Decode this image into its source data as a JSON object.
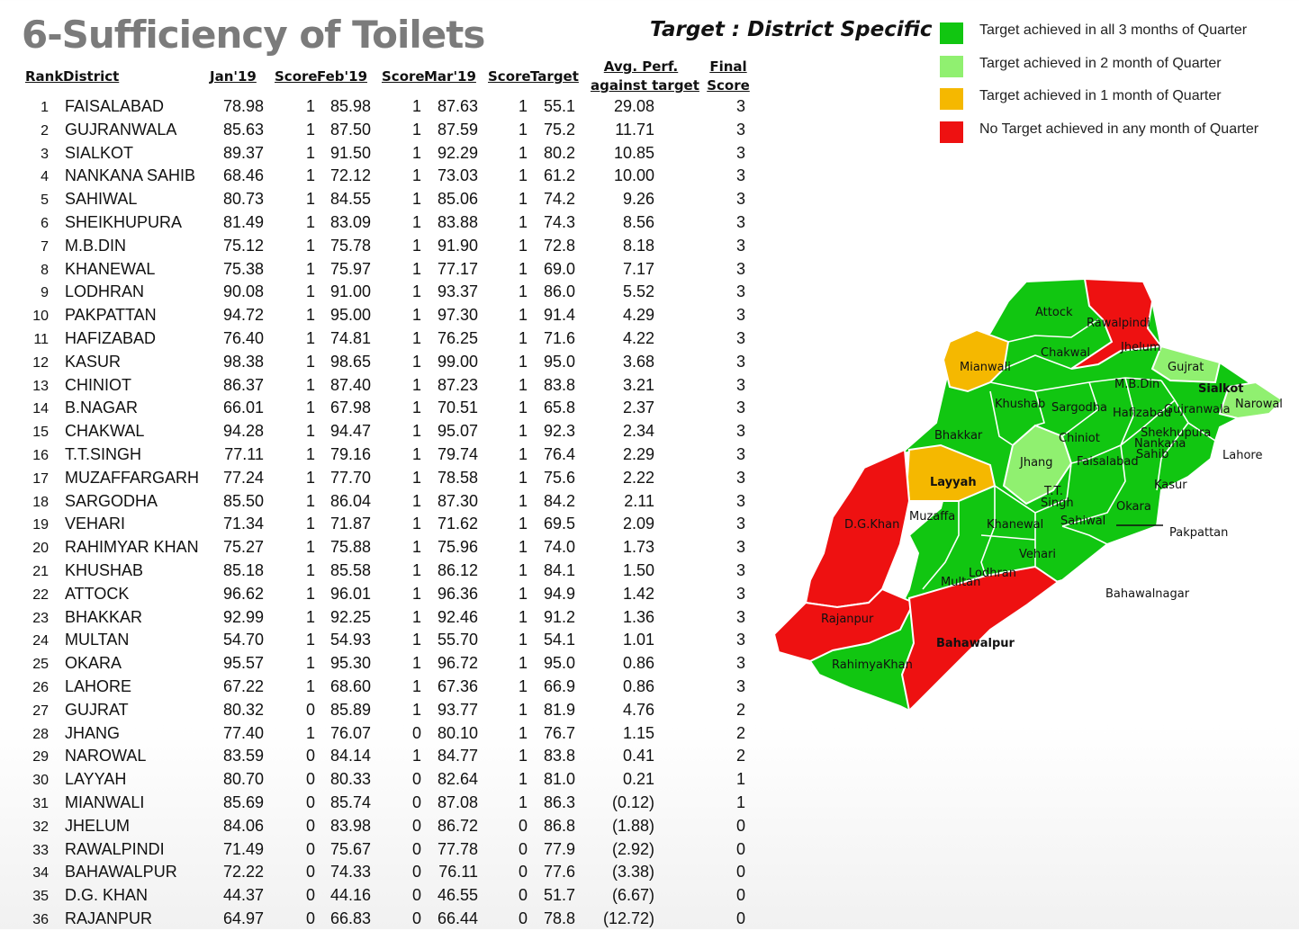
{
  "title": "6-Sufficiency of Toilets",
  "target_note": "Target : District Specific",
  "legend": [
    {
      "label": "Target achieved in all 3 months of Quarter",
      "color": "#11c611"
    },
    {
      "label": "Target achieved in 2 month of Quarter",
      "color": "#90f070"
    },
    {
      "label": "Target achieved in 1 month of Quarter",
      "color": "#f5b800"
    },
    {
      "label": "No Target achieved in any month of Quarter",
      "color": "#ee1111"
    }
  ],
  "headers": {
    "rank": "Rank",
    "district": "District",
    "jan": "Jan'19",
    "score1": "Score",
    "feb": "Feb'19",
    "score2": "Score",
    "mar": "Mar'19",
    "score3": "Score",
    "target": "Target",
    "avg_line1": "Avg. Perf.",
    "avg_line2": "against target",
    "final_line1": "Final",
    "final_line2": "Score"
  },
  "rows": [
    [
      "1",
      "FAISALABAD",
      "78.98",
      "1",
      "85.98",
      "1",
      "87.63",
      "1",
      "55.1",
      "29.08",
      "3"
    ],
    [
      "2",
      "GUJRANWALA",
      "85.63",
      "1",
      "87.50",
      "1",
      "87.59",
      "1",
      "75.2",
      "11.71",
      "3"
    ],
    [
      "3",
      "SIALKOT",
      "89.37",
      "1",
      "91.50",
      "1",
      "92.29",
      "1",
      "80.2",
      "10.85",
      "3"
    ],
    [
      "4",
      "NANKANA SAHIB",
      "68.46",
      "1",
      "72.12",
      "1",
      "73.03",
      "1",
      "61.2",
      "10.00",
      "3"
    ],
    [
      "5",
      "SAHIWAL",
      "80.73",
      "1",
      "84.55",
      "1",
      "85.06",
      "1",
      "74.2",
      "9.26",
      "3"
    ],
    [
      "6",
      "SHEIKHUPURA",
      "81.49",
      "1",
      "83.09",
      "1",
      "83.88",
      "1",
      "74.3",
      "8.56",
      "3"
    ],
    [
      "7",
      "M.B.DIN",
      "75.12",
      "1",
      "75.78",
      "1",
      "91.90",
      "1",
      "72.8",
      "8.18",
      "3"
    ],
    [
      "8",
      "KHANEWAL",
      "75.38",
      "1",
      "75.97",
      "1",
      "77.17",
      "1",
      "69.0",
      "7.17",
      "3"
    ],
    [
      "9",
      "LODHRAN",
      "90.08",
      "1",
      "91.00",
      "1",
      "93.37",
      "1",
      "86.0",
      "5.52",
      "3"
    ],
    [
      "10",
      "PAKPATTAN",
      "94.72",
      "1",
      "95.00",
      "1",
      "97.30",
      "1",
      "91.4",
      "4.29",
      "3"
    ],
    [
      "11",
      "HAFIZABAD",
      "76.40",
      "1",
      "74.81",
      "1",
      "76.25",
      "1",
      "71.6",
      "4.22",
      "3"
    ],
    [
      "12",
      "KASUR",
      "98.38",
      "1",
      "98.65",
      "1",
      "99.00",
      "1",
      "95.0",
      "3.68",
      "3"
    ],
    [
      "13",
      "CHINIOT",
      "86.37",
      "1",
      "87.40",
      "1",
      "87.23",
      "1",
      "83.8",
      "3.21",
      "3"
    ],
    [
      "14",
      "B.NAGAR",
      "66.01",
      "1",
      "67.98",
      "1",
      "70.51",
      "1",
      "65.8",
      "2.37",
      "3"
    ],
    [
      "15",
      "CHAKWAL",
      "94.28",
      "1",
      "94.47",
      "1",
      "95.07",
      "1",
      "92.3",
      "2.34",
      "3"
    ],
    [
      "16",
      "T.T.SINGH",
      "77.11",
      "1",
      "79.16",
      "1",
      "79.74",
      "1",
      "76.4",
      "2.29",
      "3"
    ],
    [
      "17",
      "MUZAFFARGARH",
      "77.24",
      "1",
      "77.70",
      "1",
      "78.58",
      "1",
      "75.6",
      "2.22",
      "3"
    ],
    [
      "18",
      "SARGODHA",
      "85.50",
      "1",
      "86.04",
      "1",
      "87.30",
      "1",
      "84.2",
      "2.11",
      "3"
    ],
    [
      "19",
      "VEHARI",
      "71.34",
      "1",
      "71.87",
      "1",
      "71.62",
      "1",
      "69.5",
      "2.09",
      "3"
    ],
    [
      "20",
      "RAHIMYAR KHAN",
      "75.27",
      "1",
      "75.88",
      "1",
      "75.96",
      "1",
      "74.0",
      "1.73",
      "3"
    ],
    [
      "21",
      "KHUSHAB",
      "85.18",
      "1",
      "85.58",
      "1",
      "86.12",
      "1",
      "84.1",
      "1.50",
      "3"
    ],
    [
      "22",
      "ATTOCK",
      "96.62",
      "1",
      "96.01",
      "1",
      "96.36",
      "1",
      "94.9",
      "1.42",
      "3"
    ],
    [
      "23",
      "BHAKKAR",
      "92.99",
      "1",
      "92.25",
      "1",
      "92.46",
      "1",
      "91.2",
      "1.36",
      "3"
    ],
    [
      "24",
      "MULTAN",
      "54.70",
      "1",
      "54.93",
      "1",
      "55.70",
      "1",
      "54.1",
      "1.01",
      "3"
    ],
    [
      "25",
      "OKARA",
      "95.57",
      "1",
      "95.30",
      "1",
      "96.72",
      "1",
      "95.0",
      "0.86",
      "3"
    ],
    [
      "26",
      "LAHORE",
      "67.22",
      "1",
      "68.60",
      "1",
      "67.36",
      "1",
      "66.9",
      "0.86",
      "3"
    ],
    [
      "27",
      "GUJRAT",
      "80.32",
      "0",
      "85.89",
      "1",
      "93.77",
      "1",
      "81.9",
      "4.76",
      "2"
    ],
    [
      "28",
      "JHANG",
      "77.40",
      "1",
      "76.07",
      "0",
      "80.10",
      "1",
      "76.7",
      "1.15",
      "2"
    ],
    [
      "29",
      "NAROWAL",
      "83.59",
      "0",
      "84.14",
      "1",
      "84.77",
      "1",
      "83.8",
      "0.41",
      "2"
    ],
    [
      "30",
      "LAYYAH",
      "80.70",
      "0",
      "80.33",
      "0",
      "82.64",
      "1",
      "81.0",
      "0.21",
      "1"
    ],
    [
      "31",
      "MIANWALI",
      "85.69",
      "0",
      "85.74",
      "0",
      "87.08",
      "1",
      "86.3",
      "(0.12)",
      "1"
    ],
    [
      "32",
      "JHELUM",
      "84.06",
      "0",
      "83.98",
      "0",
      "86.72",
      "0",
      "86.8",
      "(1.88)",
      "0"
    ],
    [
      "33",
      "RAWALPINDI",
      "71.49",
      "0",
      "75.67",
      "0",
      "77.78",
      "0",
      "77.9",
      "(2.92)",
      "0"
    ],
    [
      "34",
      "BAHAWALPUR",
      "72.22",
      "0",
      "74.33",
      "0",
      "76.11",
      "0",
      "77.6",
      "(3.38)",
      "0"
    ],
    [
      "35",
      "D.G. KHAN",
      "44.37",
      "0",
      "44.16",
      "0",
      "46.55",
      "0",
      "51.7",
      "(6.67)",
      "0"
    ],
    [
      "36",
      "RAJANPUR",
      "64.97",
      "0",
      "66.83",
      "0",
      "66.44",
      "0",
      "78.8",
      "(12.72)",
      "0"
    ]
  ],
  "map": {
    "labels": {
      "attock": "Attock",
      "rawalpindi": "Rawalpindi",
      "jhelum": "Jhelum",
      "chakwal": "Chakwal",
      "mianwali": "Mianwali",
      "gujrat": "Gujrat",
      "mbdin": "M.B.Din",
      "sialkot": "Sialkot",
      "narowal": "Narowal",
      "khushab": "Khushab",
      "sargodha": "Sargodha",
      "hafizabad": "Hafizabad",
      "gujranwala": "Gujranwala",
      "bhakkar": "Bhakkar",
      "chiniot": "Chiniot",
      "sheikhupura": "Shekhupura",
      "nankana1": "Nankana",
      "nankana2": "Sahib",
      "lahore": "Lahore",
      "faisalabad": "Faisalabad",
      "jhang": "Jhang",
      "layyah": "Layyah",
      "ttsingh1": "T.T.",
      "ttsingh2": "Singh",
      "kasur": "Kasur",
      "okara": "Okara",
      "dgkhan": "D.G.Khan",
      "muzaffargarh": "Muzaffa",
      "khanewal": "Khanewal",
      "sahiwal": "Sahiwal",
      "pakpattan": "Pakpattan",
      "vehari": "Vehari",
      "lodhran": "Lodhran",
      "multan": "Multan",
      "bahawalnagar": "Bahawalnagar",
      "rajanpur": "Rajanpur",
      "bahawalpur": "Bahawalpur",
      "rahimyarkhan": "RahimyaKhan"
    }
  }
}
